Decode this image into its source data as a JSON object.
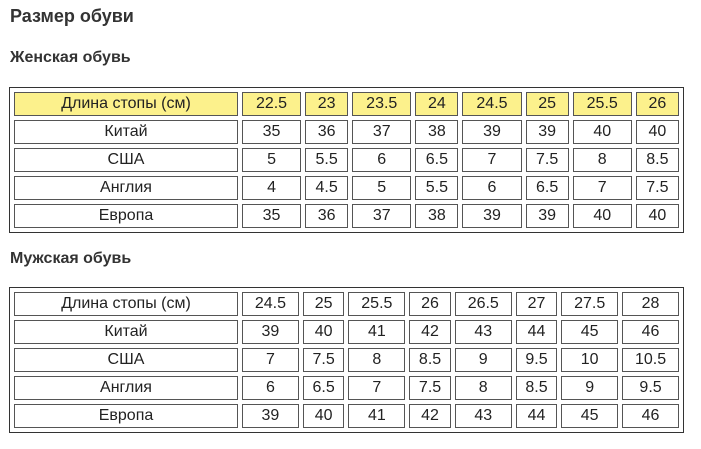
{
  "title": "Размер обуви",
  "women": {
    "title": "Женская обувь",
    "header": {
      "label": "Длина стопы (см)",
      "values": [
        "22.5",
        "23",
        "23.5",
        "24",
        "24.5",
        "25",
        "25.5",
        "26"
      ]
    },
    "rows": [
      {
        "label": "Китай",
        "values": [
          "35",
          "36",
          "37",
          "38",
          "39",
          "39",
          "40",
          "40"
        ]
      },
      {
        "label": "США",
        "values": [
          "5",
          "5.5",
          "6",
          "6.5",
          "7",
          "7.5",
          "8",
          "8.5"
        ]
      },
      {
        "label": "Англия",
        "values": [
          "4",
          "4.5",
          "5",
          "5.5",
          "6",
          "6.5",
          "7",
          "7.5"
        ]
      },
      {
        "label": "Европа",
        "values": [
          "35",
          "36",
          "37",
          "38",
          "39",
          "39",
          "40",
          "40"
        ]
      }
    ],
    "header_color": "#fcf18c"
  },
  "men": {
    "title": "Мужская обувь",
    "header": {
      "label": "Длина стопы (см)",
      "values": [
        "24.5",
        "25",
        "25.5",
        "26",
        "26.5",
        "27",
        "27.5",
        "28"
      ]
    },
    "rows": [
      {
        "label": "Китай",
        "values": [
          "39",
          "40",
          "41",
          "42",
          "43",
          "44",
          "45",
          "46"
        ]
      },
      {
        "label": "США",
        "values": [
          "7",
          "7.5",
          "8",
          "8.5",
          "9",
          "9.5",
          "10",
          "10.5"
        ]
      },
      {
        "label": "Англия",
        "values": [
          "6",
          "6.5",
          "7",
          "7.5",
          "8",
          "8.5",
          "9",
          "9.5"
        ]
      },
      {
        "label": "Европа",
        "values": [
          "39",
          "40",
          "41",
          "42",
          "43",
          "44",
          "45",
          "46"
        ]
      }
    ]
  }
}
